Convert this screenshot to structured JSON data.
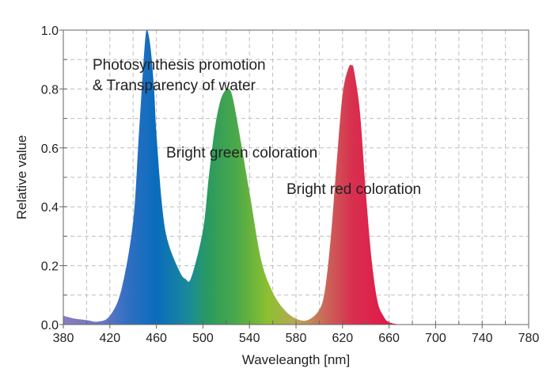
{
  "chart_data": {
    "type": "area",
    "xlabel": "Waveleangth [nm]",
    "ylabel": "Relative value",
    "xlim": [
      380,
      780
    ],
    "ylim": [
      0,
      1.0
    ],
    "grid": true,
    "x_ticks": [
      "380",
      "420",
      "460",
      "500",
      "540",
      "580",
      "620",
      "660",
      "700",
      "740",
      "780"
    ],
    "y_ticks": [
      "0.0",
      "0.2",
      "0.4",
      "0.6",
      "0.8",
      "1.0"
    ],
    "annotations": [
      {
        "text": "Photosynthesis promotion"
      },
      {
        "text": "& Transparency of water"
      },
      {
        "text": "Bright green coloration"
      },
      {
        "text": "Bright red coloration"
      }
    ],
    "series": [
      {
        "x": [
          380,
          390,
          400,
          410,
          420,
          430,
          440,
          445,
          450,
          452,
          455,
          458,
          460,
          465,
          470,
          480,
          485,
          490,
          500,
          505,
          510,
          515,
          520,
          522,
          525,
          530,
          540,
          550,
          560,
          570,
          580,
          590,
          600,
          605,
          610,
          615,
          620,
          625,
          628,
          630,
          635,
          640,
          645,
          650,
          655,
          660,
          670,
          680
        ],
        "y": [
          0.03,
          0.02,
          0.015,
          0.01,
          0.03,
          0.12,
          0.35,
          0.65,
          0.95,
          1.0,
          0.94,
          0.8,
          0.65,
          0.4,
          0.28,
          0.18,
          0.155,
          0.16,
          0.32,
          0.5,
          0.66,
          0.76,
          0.8,
          0.8,
          0.78,
          0.68,
          0.45,
          0.22,
          0.11,
          0.05,
          0.02,
          0.015,
          0.05,
          0.12,
          0.3,
          0.55,
          0.78,
          0.87,
          0.88,
          0.86,
          0.72,
          0.45,
          0.22,
          0.08,
          0.03,
          0.008,
          0.0,
          0.0
        ]
      }
    ]
  }
}
